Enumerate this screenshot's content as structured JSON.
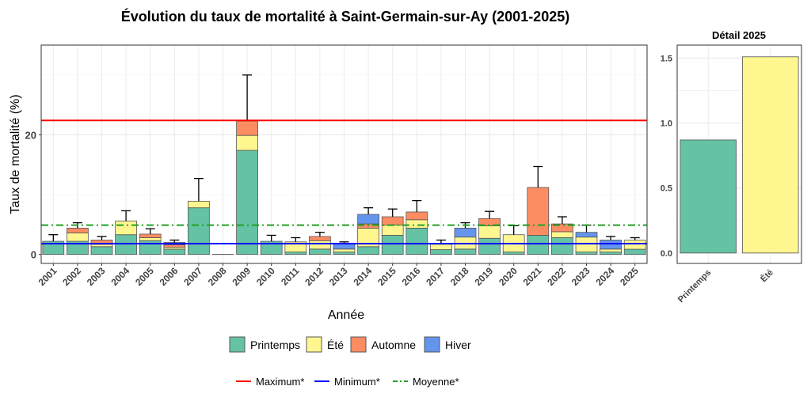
{
  "chart_data": [
    {
      "type": "bar",
      "stacked": true,
      "title": "Évolution du taux de mortalité à Saint-Germain-sur-Ay (2001-2025)",
      "xlabel": "Année",
      "ylabel": "Taux de mortalité (%)",
      "ylim": [
        -1.5,
        35
      ],
      "yticks": [
        0,
        20
      ],
      "grid": true,
      "categories": [
        "2001",
        "2002",
        "2003",
        "2004",
        "2005",
        "2006",
        "2007",
        "2008",
        "2009",
        "2010",
        "2011",
        "2012",
        "2013",
        "2014",
        "2015",
        "2016",
        "2017",
        "2018",
        "2019",
        "2020",
        "2021",
        "2022",
        "2023",
        "2024",
        "2025"
      ],
      "series": [
        {
          "name": "Printemps",
          "color": "#66c2a5",
          "values": [
            2.2,
            2.2,
            1.3,
            3.3,
            2.3,
            0.9,
            7.8,
            0,
            17.4,
            2.2,
            0.4,
            0.9,
            0.4,
            1.3,
            3.2,
            4.4,
            0.8,
            0.9,
            2.7,
            0.4,
            3.2,
            2.8,
            0.4,
            0.4,
            0.87
          ]
        },
        {
          "name": "Été",
          "color": "#fff68f",
          "values": [
            0,
            1.4,
            0.4,
            2.3,
            0.5,
            0.3,
            1.1,
            0,
            2.5,
            0,
            1.7,
            1.4,
            0.5,
            3.1,
            1.7,
            1.4,
            0.9,
            2.0,
            2.1,
            2.9,
            0,
            1.0,
            2.5,
            0.5,
            1.51
          ]
        },
        {
          "name": "Automne",
          "color": "#fc8d62",
          "values": [
            0,
            0.8,
            0.7,
            0,
            0.6,
            0.4,
            0,
            0,
            2.4,
            0,
            0,
            0.7,
            0,
            0.7,
            1.4,
            1.3,
            0,
            0,
            1.2,
            0,
            8.0,
            1.3,
            0,
            0,
            0
          ]
        },
        {
          "name": "Hiver",
          "color": "#6495ed",
          "values": [
            0,
            0,
            0,
            0,
            0,
            0.4,
            0,
            0,
            0,
            0,
            0,
            0,
            0.9,
            1.6,
            0,
            0,
            0,
            1.5,
            0,
            0,
            0,
            0,
            0.8,
            1.5,
            0
          ]
        }
      ],
      "error_upper": [
        3.3,
        5.3,
        3.0,
        7.3,
        4.3,
        2.4,
        12.7,
        0,
        30,
        3.2,
        2.8,
        3.7,
        2.1,
        7.8,
        7.6,
        9.0,
        2.4,
        5.3,
        7.2,
        4.8,
        14.7,
        6.3,
        4.9,
        3.0,
        2.8
      ],
      "reference_lines": [
        {
          "name": "Maximum*",
          "value": 22.4,
          "color": "#ff0000",
          "style": "solid"
        },
        {
          "name": "Minimum*",
          "value": 1.8,
          "color": "#0000ff",
          "style": "solid"
        },
        {
          "name": "Moyenne*",
          "value": 4.9,
          "color": "#22a022",
          "style": "dotdash"
        }
      ],
      "legend": {
        "placement": "bottom",
        "fill_items": [
          "Printemps",
          "Été",
          "Automne",
          "Hiver"
        ],
        "line_items": [
          "Maximum*",
          "Minimum*",
          "Moyenne*"
        ]
      }
    },
    {
      "type": "bar",
      "title": "Détail 2025",
      "categories": [
        "Printemps",
        "Été"
      ],
      "values": [
        0.87,
        1.51
      ],
      "colors": [
        "#66c2a5",
        "#fff68f"
      ],
      "ylim": [
        -0.08,
        1.6
      ],
      "yticks": [
        "0.0",
        "0.5",
        "1.0",
        "1.5"
      ],
      "axis_side": "left"
    }
  ]
}
